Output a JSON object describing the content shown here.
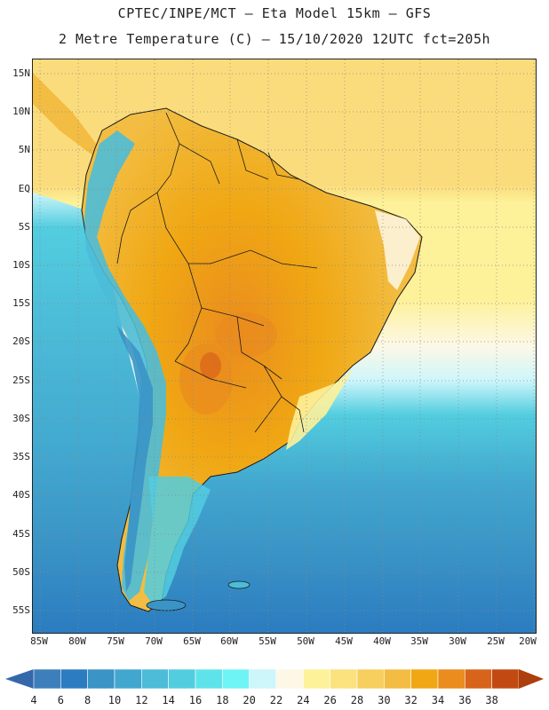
{
  "header": {
    "line1": "CPTEC/INPE/MCT –  Eta Model 15km – GFS",
    "line2": "2 Metre Temperature (C) – 15/10/2020 12UTC fct=205h"
  },
  "map": {
    "lat_labels": [
      "15N",
      "10N",
      "5N",
      "EQ",
      "5S",
      "10S",
      "15S",
      "20S",
      "25S",
      "30S",
      "35S",
      "40S",
      "45S",
      "50S",
      "55S"
    ],
    "lon_labels": [
      "85W",
      "80W",
      "75W",
      "70W",
      "65W",
      "60W",
      "55W",
      "50W",
      "45W",
      "40W",
      "35W",
      "30W",
      "25W",
      "20W"
    ],
    "ocean_color": "#3fa7d6",
    "land_color": "#f2a93a",
    "gridline_style": "dotted"
  },
  "colorbar": {
    "labels": [
      "4",
      "6",
      "8",
      "10",
      "12",
      "14",
      "16",
      "18",
      "20",
      "22",
      "24",
      "26",
      "28",
      "30",
      "32",
      "34",
      "36",
      "38"
    ],
    "colors": [
      "#3d7fba",
      "#2b7cc0",
      "#3a94c6",
      "#42a7cf",
      "#4cbcd8",
      "#52cddf",
      "#5fe3ea",
      "#6ff4f6",
      "#cdf6fb",
      "#fdf8e6",
      "#fdf19a",
      "#fbe27e",
      "#f7cf5e",
      "#f2bd42",
      "#f0a713",
      "#ea8c1e",
      "#d8631a",
      "#c24a12"
    ],
    "low_arrow_color": "#3468aa",
    "high_arrow_color": "#ad3e0e"
  }
}
